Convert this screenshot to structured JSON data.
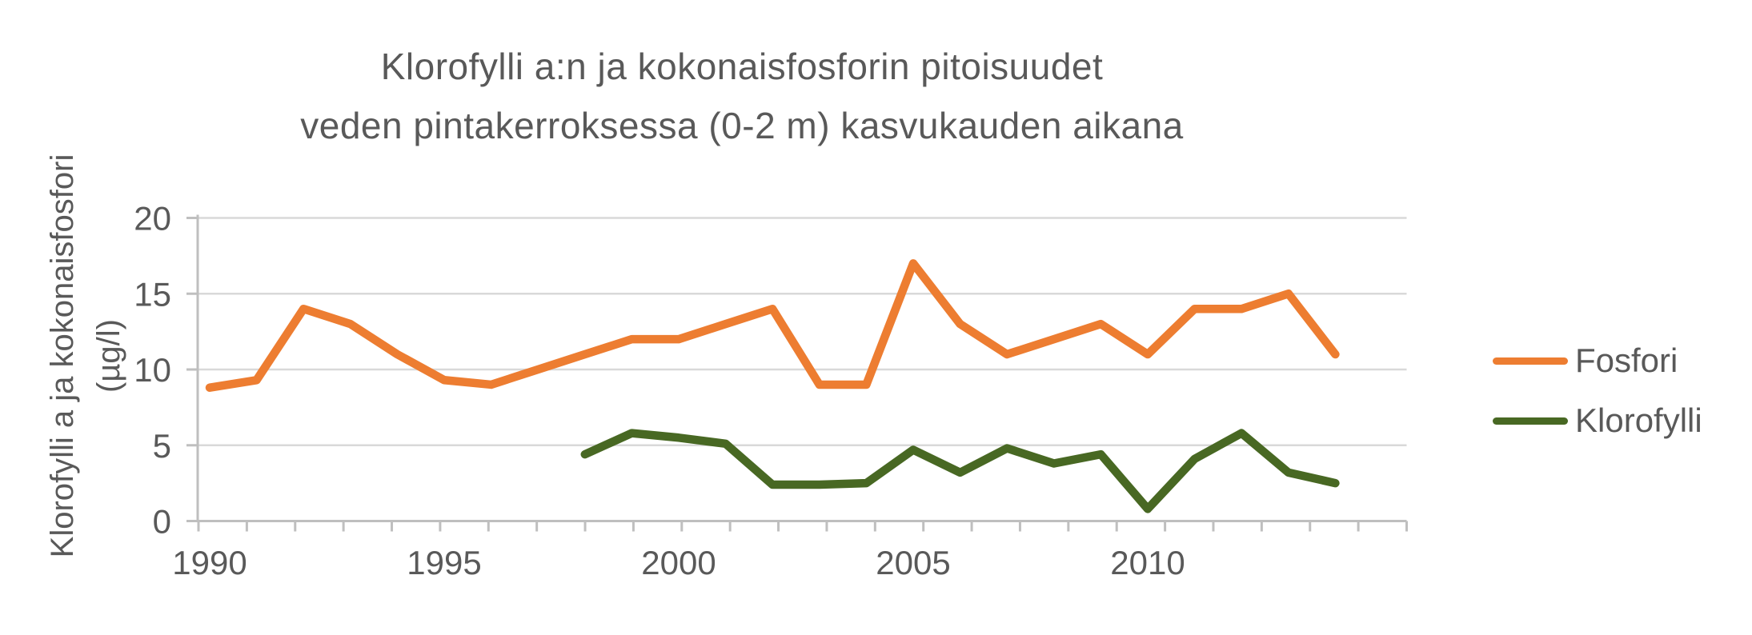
{
  "title": {
    "line1": "Klorofylli a:n ja kokonaisfosforin pitoisuudet",
    "line2": "veden pintakerroksessa (0-2 m) kasvukauden aikana"
  },
  "y_axis": {
    "label_line1": "Klorofylli a ja kokonaisfosfori",
    "label_line2": "(µg/l)",
    "ticks": [
      0,
      5,
      10,
      15,
      20
    ]
  },
  "x_axis": {
    "labels": [
      1990,
      1995,
      2000,
      2005,
      2010
    ]
  },
  "legend": [
    {
      "label": "Fosfori",
      "color": "#ED7D31"
    },
    {
      "label": "Klorofylli",
      "color": "#486823"
    }
  ],
  "colors": {
    "gridline": "#D9D9D9",
    "axis": "#BFBFBF",
    "text": "#595959",
    "fosfori": "#ED7D31",
    "klorofylli": "#486823"
  },
  "chart_data": {
    "type": "line",
    "title": "Klorofylli a:n ja kokonaisfosforin pitoisuudet veden pintakerroksessa (0-2 m) kasvukauden aikana",
    "ylabel": "Klorofylli a ja kokonaisfosfori (µg/l)",
    "xlabel": "",
    "ylim": [
      0,
      20
    ],
    "grid": true,
    "legend_position": "right",
    "x": [
      1990,
      1991,
      1992,
      1993,
      1994,
      1995,
      1996,
      1997,
      1998,
      1999,
      2000,
      2001,
      2002,
      2003,
      2004,
      2005,
      2006,
      2007,
      2008,
      2009,
      2010,
      2011,
      2012,
      2013,
      2014
    ],
    "series": [
      {
        "name": "Fosfori",
        "color": "#ED7D31",
        "values": [
          8.8,
          9.3,
          14,
          13,
          11,
          9.3,
          9,
          10,
          11,
          12,
          12,
          13,
          14,
          9,
          9,
          17,
          13,
          11,
          12,
          13,
          11,
          14,
          14,
          15,
          11
        ]
      },
      {
        "name": "Klorofylli",
        "color": "#486823",
        "values": [
          null,
          null,
          null,
          null,
          null,
          null,
          null,
          null,
          4.4,
          5.8,
          5.5,
          5.1,
          2.4,
          2.4,
          2.5,
          4.7,
          3.2,
          4.8,
          3.8,
          4.4,
          0.8,
          4.1,
          5.8,
          3.2,
          2.5
        ]
      }
    ]
  }
}
